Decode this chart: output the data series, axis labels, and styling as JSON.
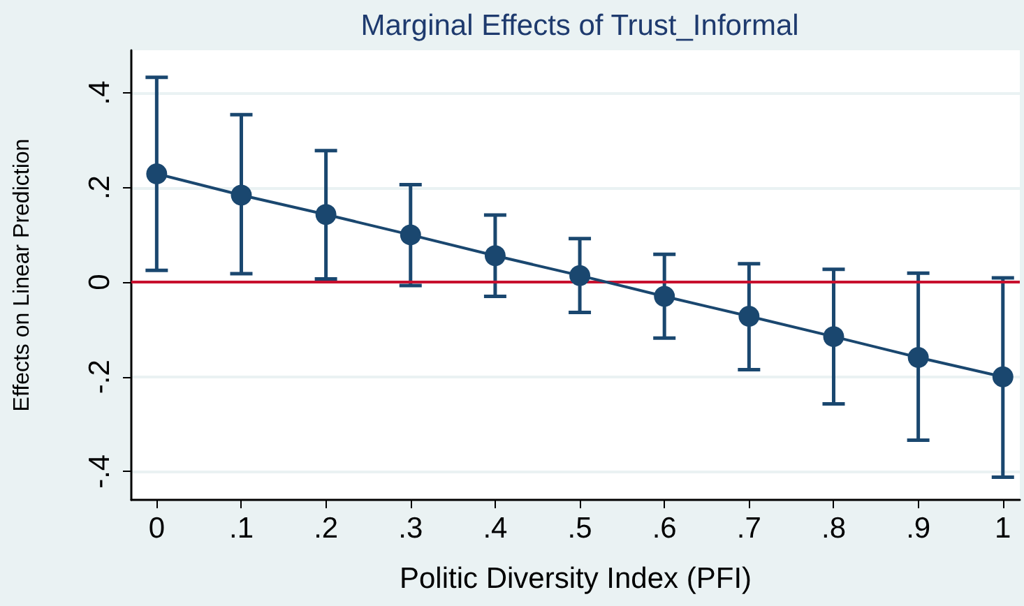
{
  "chart_data": {
    "type": "line",
    "title": "Marginal Effects of Trust_Informal",
    "xlabel": "Politic Diversity Index (PFI)",
    "ylabel": "Effects on Linear Prediction",
    "x": [
      0,
      0.1,
      0.2,
      0.3,
      0.4,
      0.5,
      0.6,
      0.7,
      0.8,
      0.9,
      1
    ],
    "series": [
      {
        "color": "#1a476f",
        "values": [
          0.229,
          0.184,
          0.143,
          0.1,
          0.056,
          0.014,
          -0.03,
          -0.072,
          -0.115,
          -0.159,
          -0.2
        ],
        "errors": [
          [
            0.025,
            0.433
          ],
          [
            0.018,
            0.354
          ],
          [
            0.007,
            0.278
          ],
          [
            -0.007,
            0.206
          ],
          [
            -0.03,
            0.142
          ],
          [
            -0.064,
            0.092
          ],
          [
            -0.118,
            0.059
          ],
          [
            -0.185,
            0.039
          ],
          [
            -0.257,
            0.027
          ],
          [
            -0.334,
            0.019
          ],
          [
            -0.412,
            0.009
          ]
        ]
      }
    ],
    "xlim": [
      -0.03,
      1.02
    ],
    "ylim": [
      -0.46,
      0.49
    ],
    "xticks": [
      0,
      {
        "value": 0.1,
        "label": ".1"
      },
      {
        "value": 0.2,
        "label": ".2"
      },
      {
        "value": 0.3,
        "label": ".3"
      },
      {
        "value": 0.4,
        "label": ".4"
      },
      {
        "value": 0.5,
        "label": ".5"
      },
      {
        "value": 0.6,
        "label": ".6"
      },
      {
        "value": 0.7,
        "label": ".7"
      },
      {
        "value": 0.8,
        "label": ".8"
      },
      {
        "value": 0.9,
        "label": ".9"
      },
      1
    ],
    "yticks": [
      {
        "value": -0.4,
        "label": "-.4"
      },
      {
        "value": -0.2,
        "label": "-.2"
      },
      0,
      {
        "value": 0.2,
        "label": ".2"
      },
      {
        "value": 0.4,
        "label": ".4"
      }
    ],
    "ref_lines": [
      {
        "axis": "y",
        "value": 0,
        "color": "#c8102e"
      }
    ],
    "grid": "y",
    "marker": "circle",
    "line_style": "solid"
  }
}
